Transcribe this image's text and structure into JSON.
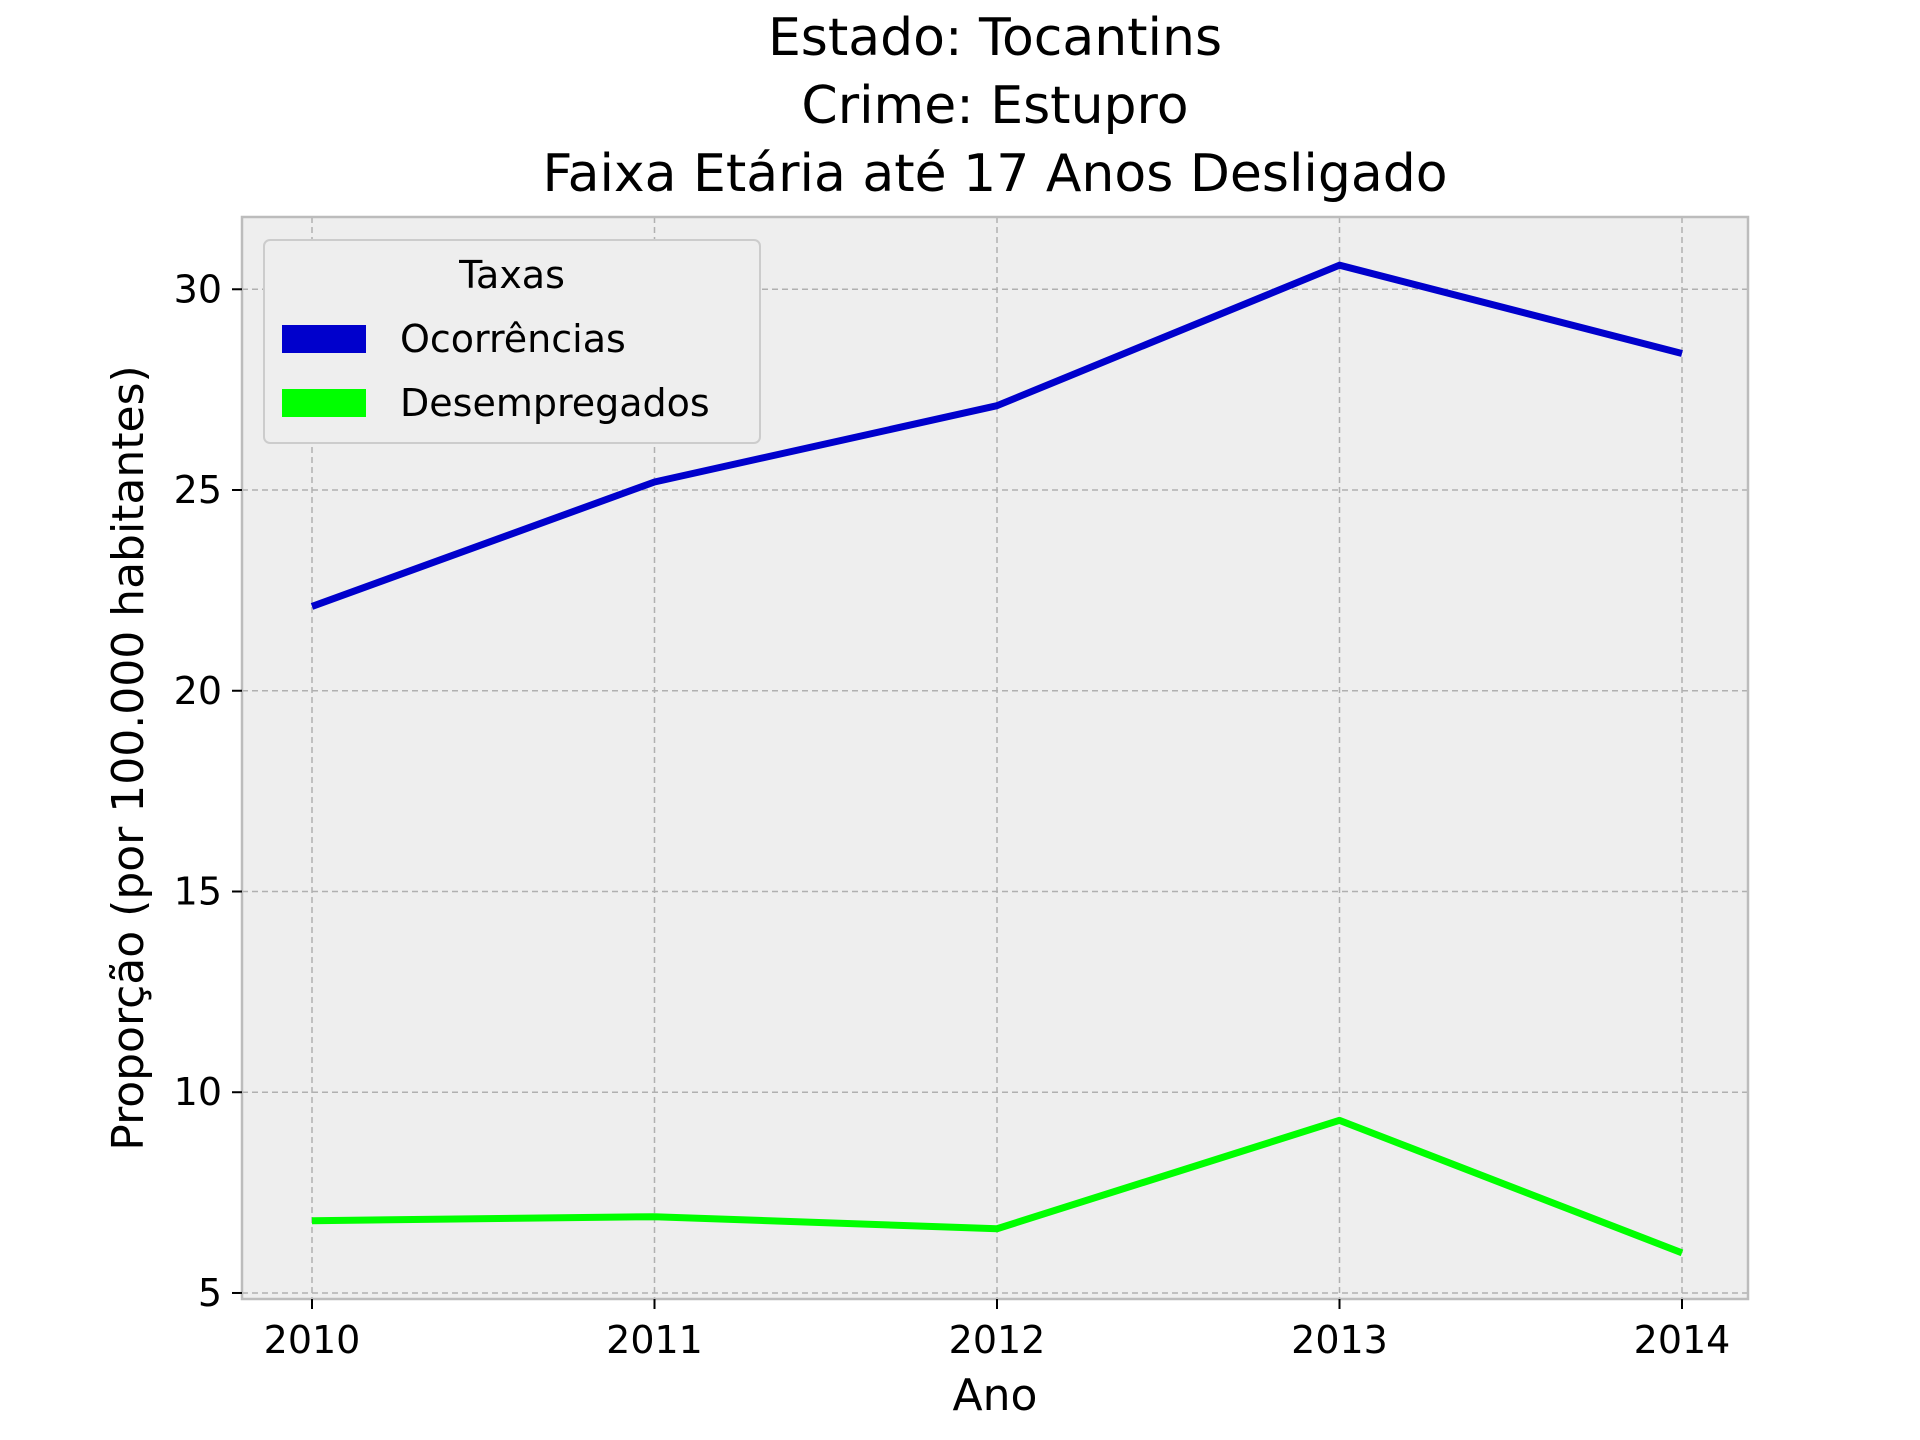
{
  "chart_data": {
    "type": "line",
    "title_lines": [
      "Estado: Tocantins",
      "Crime: Estupro",
      "Faixa Etária até 17 Anos   Desligado"
    ],
    "xlabel": "Ano",
    "ylabel": "Proporção (por 100.000 habitantes)",
    "x": [
      "2010",
      "2011",
      "2012",
      "2013",
      "2014"
    ],
    "yticks": [
      "5",
      "10",
      "15",
      "20",
      "25",
      "30"
    ],
    "ylim": [
      4.85,
      31.8
    ],
    "grid": true,
    "legend": {
      "title": "Taxas",
      "placement": "top-left"
    },
    "series": [
      {
        "name": "Ocorrências",
        "color": "#0000cc",
        "values": [
          22.1,
          25.2,
          27.1,
          30.6,
          28.4
        ]
      },
      {
        "name": "Desempregados",
        "color": "#00ff00",
        "values": [
          6.8,
          6.9,
          6.6,
          9.3,
          6.0
        ]
      }
    ]
  }
}
